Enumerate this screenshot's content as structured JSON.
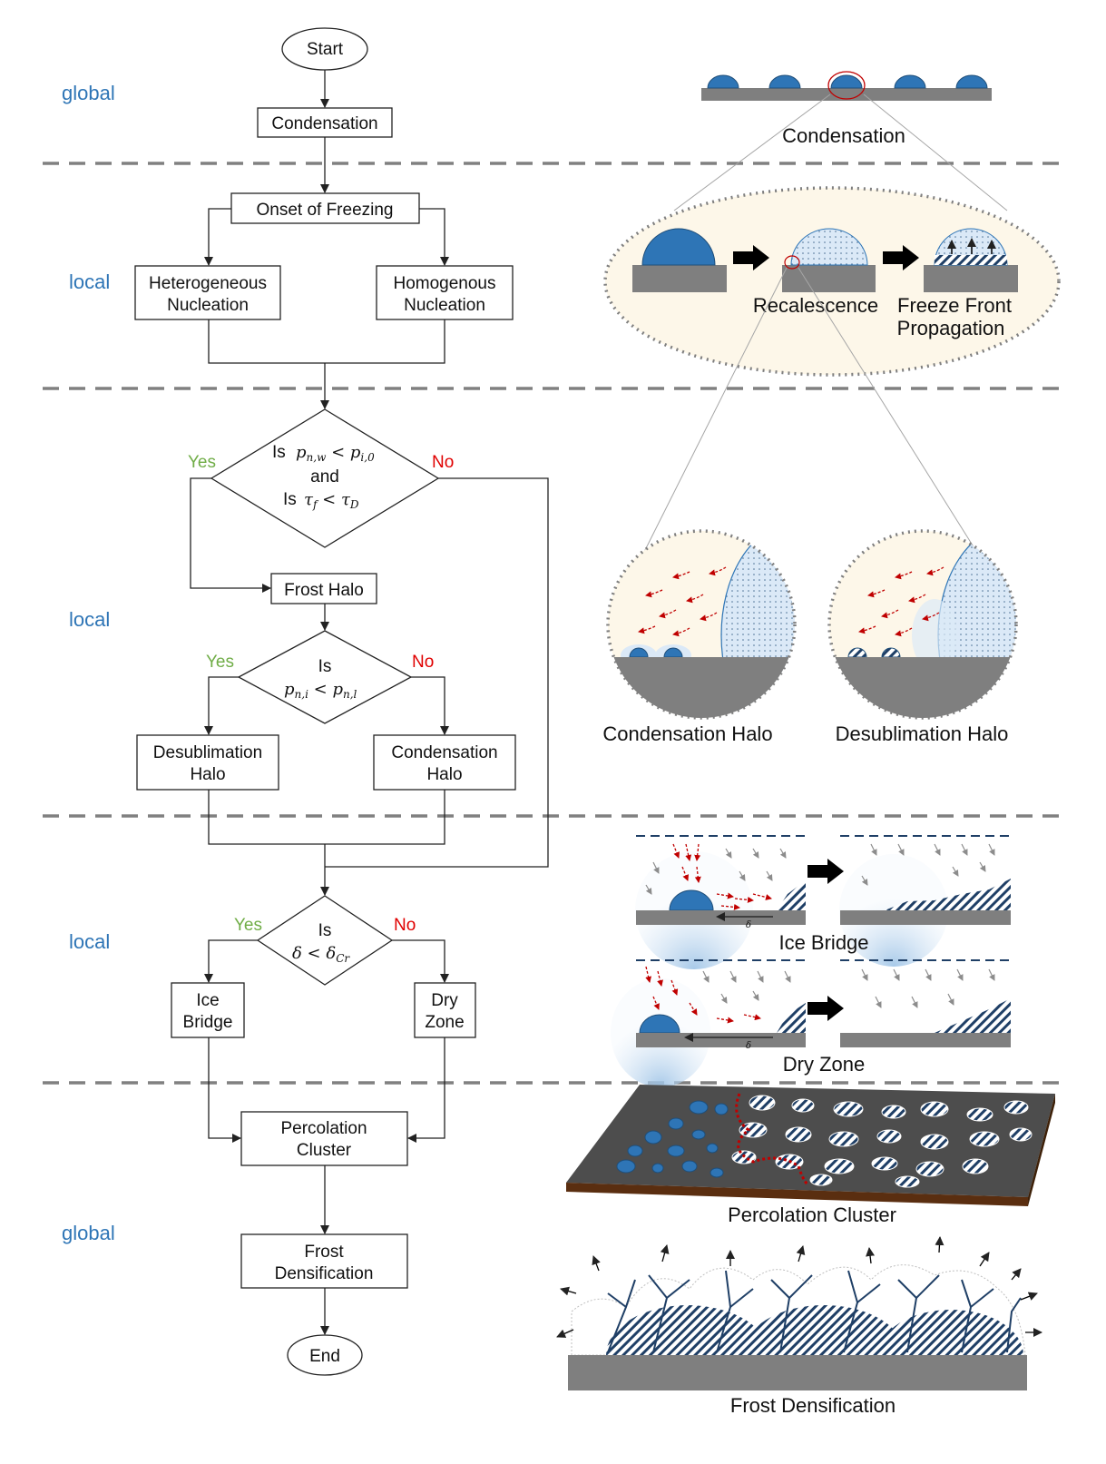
{
  "scales": [
    "global",
    "local",
    "local",
    "local",
    "global"
  ],
  "flowchart": {
    "start": "Start",
    "condensation": "Condensation",
    "onset": "Onset of Freezing",
    "hetero": [
      "Heterogeneous",
      "Nucleation"
    ],
    "homo": [
      "Homogenous",
      "Nucleation"
    ],
    "decision1": {
      "is": "Is",
      "and": "and"
    },
    "frost_halo": "Frost Halo",
    "decision2": {
      "is": "Is"
    },
    "desub_halo": [
      "Desublimation",
      "Halo"
    ],
    "cond_halo": [
      "Condensation",
      "Halo"
    ],
    "decision3": {
      "is": "Is"
    },
    "ice_bridge": [
      "Ice",
      "Bridge"
    ],
    "dry_zone": [
      "Dry",
      "Zone"
    ],
    "percolation": [
      "Percolation",
      "Cluster"
    ],
    "densification": [
      "Frost",
      "Densification"
    ],
    "end": "End",
    "yes": "Yes",
    "no": "No"
  },
  "illustrations": {
    "condensation": "Condensation",
    "recalescence": "Recalescence",
    "freeze_front": [
      "Freeze Front",
      "Propagation"
    ],
    "condensation_halo": "Condensation Halo",
    "desublimation_halo": "Desublimation Halo",
    "delta": "δ",
    "ice_bridge": "Ice Bridge",
    "dry_zone": "Dry Zone",
    "percolation_cluster": "Percolation Cluster",
    "frost_densification": "Frost Densification"
  },
  "colors": {
    "scale_label": "#2e75b6",
    "yes": "#70ad47",
    "no": "#e00000",
    "droplet": "#2e75b6",
    "substrate": "#7f7f7f",
    "vapor_arrow": "#c00000",
    "separator": "#808080"
  }
}
